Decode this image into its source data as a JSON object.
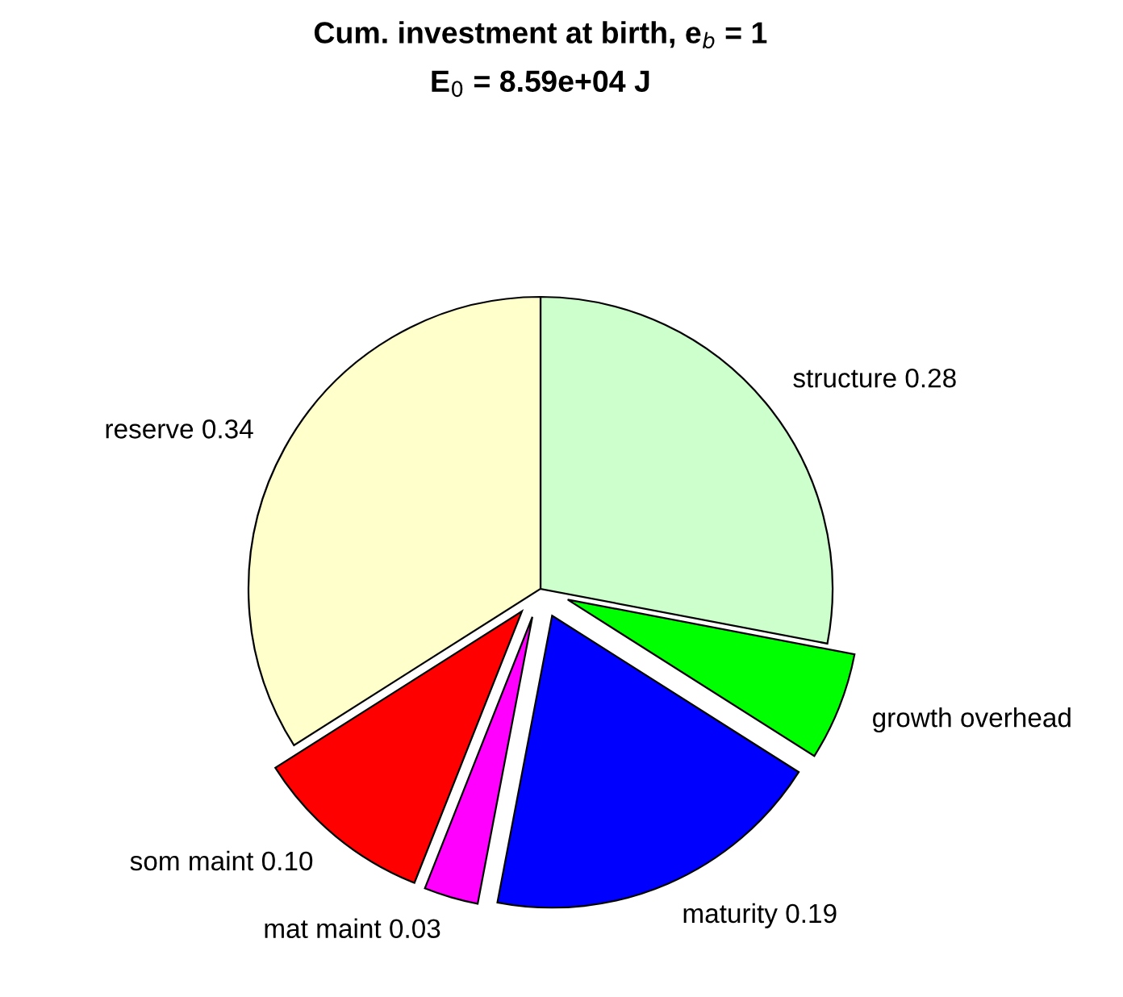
{
  "chart_data": {
    "type": "pie",
    "title": "Cum. investment at birth, e$_{b}$ = 1",
    "subtitle": "E$_{0}$ = 8.59e+04 J",
    "categories": [
      "structure",
      "growth overhead",
      "maturity",
      "mat maint",
      "som maint",
      "reserve"
    ],
    "values": [
      0.28,
      0.06,
      0.19,
      0.03,
      0.1,
      0.34
    ],
    "colors": [
      "#ccffcc",
      "#00ff00",
      "#0000ff",
      "#ff00ff",
      "#ff0000",
      "#ffffcc"
    ],
    "value_labels": [
      "0.28",
      null,
      "0.19",
      "0.03",
      "0.10",
      "0.34"
    ]
  }
}
